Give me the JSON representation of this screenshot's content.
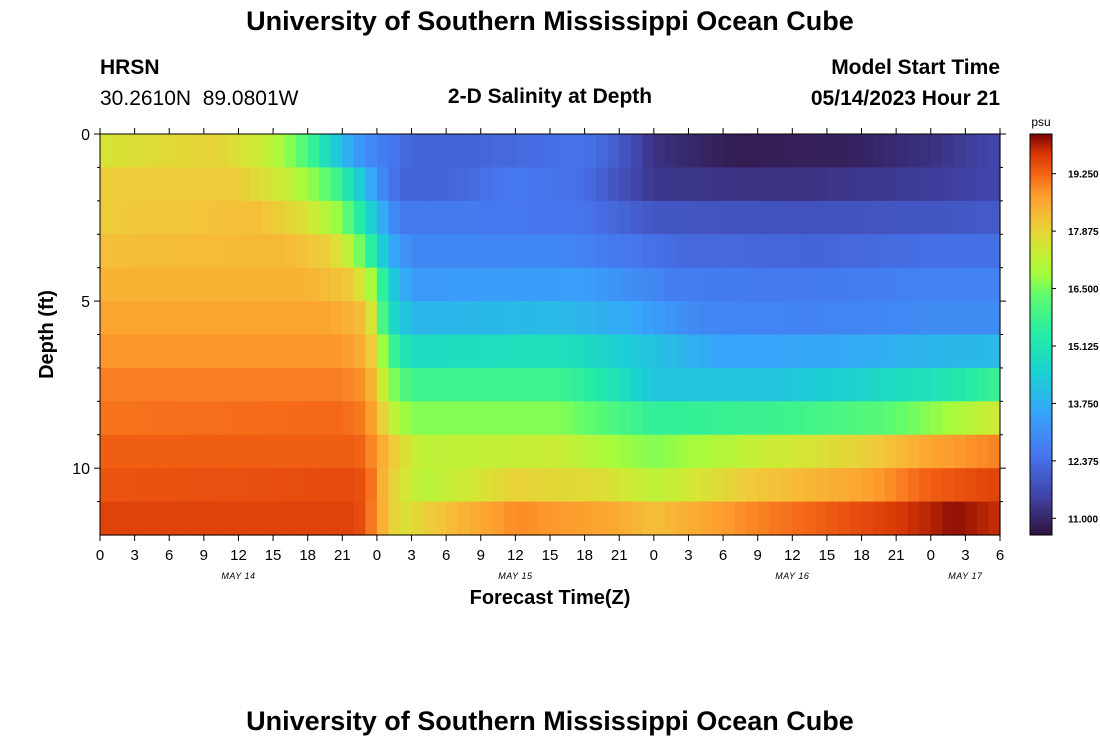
{
  "page": {
    "title": "University of Southern Mississippi Ocean Cube",
    "footer_title": "University of Southern Mississippi Ocean Cube"
  },
  "header": {
    "station": "HRSN",
    "coords": "30.2610N  89.0801W",
    "chart_title": "2-D Salinity at Depth",
    "model_label": "Model Start Time",
    "model_time": "05/14/2023 Hour 21"
  },
  "chart_data": {
    "type": "heatmap",
    "title": "2-D Salinity at Depth",
    "xlabel": "Forecast Time(Z)",
    "ylabel": "Depth (ft)",
    "x_unit": "hours since 05/14 00Z",
    "xlim": [
      0,
      78
    ],
    "ylim": [
      0,
      12
    ],
    "x_ticks": [
      0,
      3,
      6,
      9,
      12,
      15,
      18,
      21,
      24,
      27,
      30,
      33,
      36,
      39,
      42,
      45,
      48,
      51,
      54,
      57,
      60,
      63,
      66,
      69,
      72,
      75,
      78
    ],
    "x_tick_labels": [
      "0",
      "3",
      "6",
      "9",
      "12",
      "15",
      "18",
      "21",
      "0",
      "3",
      "6",
      "9",
      "12",
      "15",
      "18",
      "21",
      "0",
      "3",
      "6",
      "9",
      "12",
      "15",
      "18",
      "21",
      "0",
      "3",
      "6"
    ],
    "date_labels": [
      {
        "x": 12,
        "text": "MAY 14"
      },
      {
        "x": 36,
        "text": "MAY 15"
      },
      {
        "x": 60,
        "text": "MAY 16"
      },
      {
        "x": 75,
        "text": "MAY 17"
      }
    ],
    "y_major_ticks": [
      0,
      5,
      10
    ],
    "y_tick_labels": [
      "0",
      "5",
      "10"
    ],
    "y_minor_ticks": [
      1,
      2,
      3,
      4,
      6,
      7,
      8,
      9,
      11
    ],
    "depth_layers": [
      0.5,
      1.5,
      2.5,
      3.5,
      4.5,
      5.5,
      6.5,
      7.5,
      8.5,
      9.5,
      10.5,
      11.5
    ],
    "colorbar": {
      "unit": "psu",
      "min": 10.6,
      "max": 20.2,
      "ticks": [
        11.0,
        12.375,
        13.75,
        15.125,
        16.5,
        17.875,
        19.25
      ],
      "tick_labels": [
        "11.000",
        "12.375",
        "13.750",
        "15.125",
        "16.500",
        "17.875",
        "19.250"
      ]
    },
    "layer_profiles": [
      {
        "depth": 0.5,
        "points": [
          [
            0,
            17.6
          ],
          [
            10,
            17.9
          ],
          [
            14,
            17.4
          ],
          [
            16,
            16.8
          ],
          [
            18,
            16.0
          ],
          [
            20,
            14.6
          ],
          [
            22,
            13.4
          ],
          [
            24,
            12.8
          ],
          [
            27,
            12.2
          ],
          [
            33,
            12.2
          ],
          [
            42,
            12.5
          ],
          [
            45,
            12.0
          ],
          [
            48,
            11.2
          ],
          [
            55,
            10.8
          ],
          [
            65,
            10.9
          ],
          [
            72,
            11.2
          ],
          [
            78,
            11.6
          ]
        ]
      },
      {
        "depth": 1.5,
        "points": [
          [
            0,
            18.0
          ],
          [
            12,
            18.0
          ],
          [
            16,
            17.4
          ],
          [
            20,
            16.2
          ],
          [
            23,
            14.0
          ],
          [
            24,
            13.2
          ],
          [
            26,
            12.2
          ],
          [
            30,
            12.2
          ],
          [
            36,
            12.6
          ],
          [
            42,
            12.4
          ],
          [
            45,
            11.8
          ],
          [
            48,
            11.3
          ],
          [
            60,
            11.2
          ],
          [
            72,
            11.4
          ],
          [
            78,
            11.6
          ]
        ]
      },
      {
        "depth": 2.5,
        "points": [
          [
            0,
            18.0
          ],
          [
            14,
            18.2
          ],
          [
            18,
            17.6
          ],
          [
            21,
            16.6
          ],
          [
            23,
            15.0
          ],
          [
            24,
            14.0
          ],
          [
            26,
            12.6
          ],
          [
            32,
            12.6
          ],
          [
            42,
            12.5
          ],
          [
            48,
            11.9
          ],
          [
            60,
            11.8
          ],
          [
            72,
            11.9
          ],
          [
            78,
            12.0
          ]
        ]
      },
      {
        "depth": 3.5,
        "points": [
          [
            0,
            18.2
          ],
          [
            16,
            18.3
          ],
          [
            20,
            17.9
          ],
          [
            22,
            17.0
          ],
          [
            24,
            15.0
          ],
          [
            25,
            13.8
          ],
          [
            27,
            12.9
          ],
          [
            40,
            12.9
          ],
          [
            50,
            12.3
          ],
          [
            62,
            12.2
          ],
          [
            72,
            12.4
          ],
          [
            78,
            12.4
          ]
        ]
      },
      {
        "depth": 4.5,
        "points": [
          [
            0,
            18.4
          ],
          [
            18,
            18.4
          ],
          [
            22,
            18.0
          ],
          [
            24,
            16.5
          ],
          [
            25,
            14.6
          ],
          [
            27,
            13.3
          ],
          [
            42,
            13.4
          ],
          [
            50,
            12.7
          ],
          [
            60,
            12.6
          ],
          [
            72,
            12.8
          ],
          [
            78,
            12.8
          ]
        ]
      },
      {
        "depth": 5.5,
        "points": [
          [
            0,
            18.6
          ],
          [
            20,
            18.6
          ],
          [
            23,
            18.2
          ],
          [
            24,
            17.0
          ],
          [
            25,
            15.0
          ],
          [
            27,
            13.9
          ],
          [
            40,
            14.0
          ],
          [
            46,
            13.6
          ],
          [
            52,
            12.9
          ],
          [
            62,
            12.8
          ],
          [
            72,
            13.0
          ],
          [
            78,
            13.0
          ]
        ]
      },
      {
        "depth": 6.5,
        "points": [
          [
            0,
            18.8
          ],
          [
            21,
            18.8
          ],
          [
            23,
            18.4
          ],
          [
            24,
            17.6
          ],
          [
            25,
            16.0
          ],
          [
            27,
            14.8
          ],
          [
            40,
            15.0
          ],
          [
            46,
            14.4
          ],
          [
            54,
            13.5
          ],
          [
            64,
            13.6
          ],
          [
            72,
            13.9
          ],
          [
            78,
            14.0
          ]
        ]
      },
      {
        "depth": 7.5,
        "points": [
          [
            0,
            19.0
          ],
          [
            21,
            19.0
          ],
          [
            23,
            18.8
          ],
          [
            24,
            18.0
          ],
          [
            25,
            16.8
          ],
          [
            27,
            15.8
          ],
          [
            40,
            15.8
          ],
          [
            44,
            15.2
          ],
          [
            48,
            14.2
          ],
          [
            58,
            14.2
          ],
          [
            66,
            14.6
          ],
          [
            74,
            15.2
          ],
          [
            78,
            15.8
          ]
        ]
      },
      {
        "depth": 8.5,
        "points": [
          [
            0,
            19.1
          ],
          [
            21,
            19.2
          ],
          [
            23,
            19.0
          ],
          [
            24,
            18.4
          ],
          [
            25,
            17.4
          ],
          [
            27,
            16.6
          ],
          [
            40,
            16.6
          ],
          [
            44,
            16.1
          ],
          [
            48,
            15.6
          ],
          [
            60,
            15.8
          ],
          [
            68,
            16.2
          ],
          [
            74,
            16.9
          ],
          [
            78,
            17.5
          ]
        ]
      },
      {
        "depth": 9.5,
        "points": [
          [
            0,
            19.3
          ],
          [
            22,
            19.3
          ],
          [
            23,
            19.2
          ],
          [
            24,
            18.7
          ],
          [
            26,
            17.8
          ],
          [
            28,
            17.2
          ],
          [
            40,
            17.4
          ],
          [
            44,
            16.9
          ],
          [
            48,
            16.6
          ],
          [
            58,
            17.4
          ],
          [
            66,
            17.9
          ],
          [
            72,
            18.6
          ],
          [
            78,
            19.0
          ]
        ]
      },
      {
        "depth": 10.5,
        "points": [
          [
            0,
            19.4
          ],
          [
            22,
            19.5
          ],
          [
            23,
            19.4
          ],
          [
            24,
            18.8
          ],
          [
            25,
            18.0
          ],
          [
            28,
            17.1
          ],
          [
            36,
            17.9
          ],
          [
            44,
            17.7
          ],
          [
            48,
            17.2
          ],
          [
            56,
            18.0
          ],
          [
            66,
            18.6
          ],
          [
            72,
            19.3
          ],
          [
            78,
            19.6
          ]
        ]
      },
      {
        "depth": 11.5,
        "points": [
          [
            0,
            19.6
          ],
          [
            22,
            19.6
          ],
          [
            23,
            19.4
          ],
          [
            24,
            18.7
          ],
          [
            26,
            17.6
          ],
          [
            30,
            18.2
          ],
          [
            36,
            18.9
          ],
          [
            44,
            18.6
          ],
          [
            48,
            18.2
          ],
          [
            56,
            18.9
          ],
          [
            66,
            19.5
          ],
          [
            72,
            19.9
          ],
          [
            74,
            20.1
          ],
          [
            78,
            19.8
          ]
        ]
      }
    ]
  }
}
